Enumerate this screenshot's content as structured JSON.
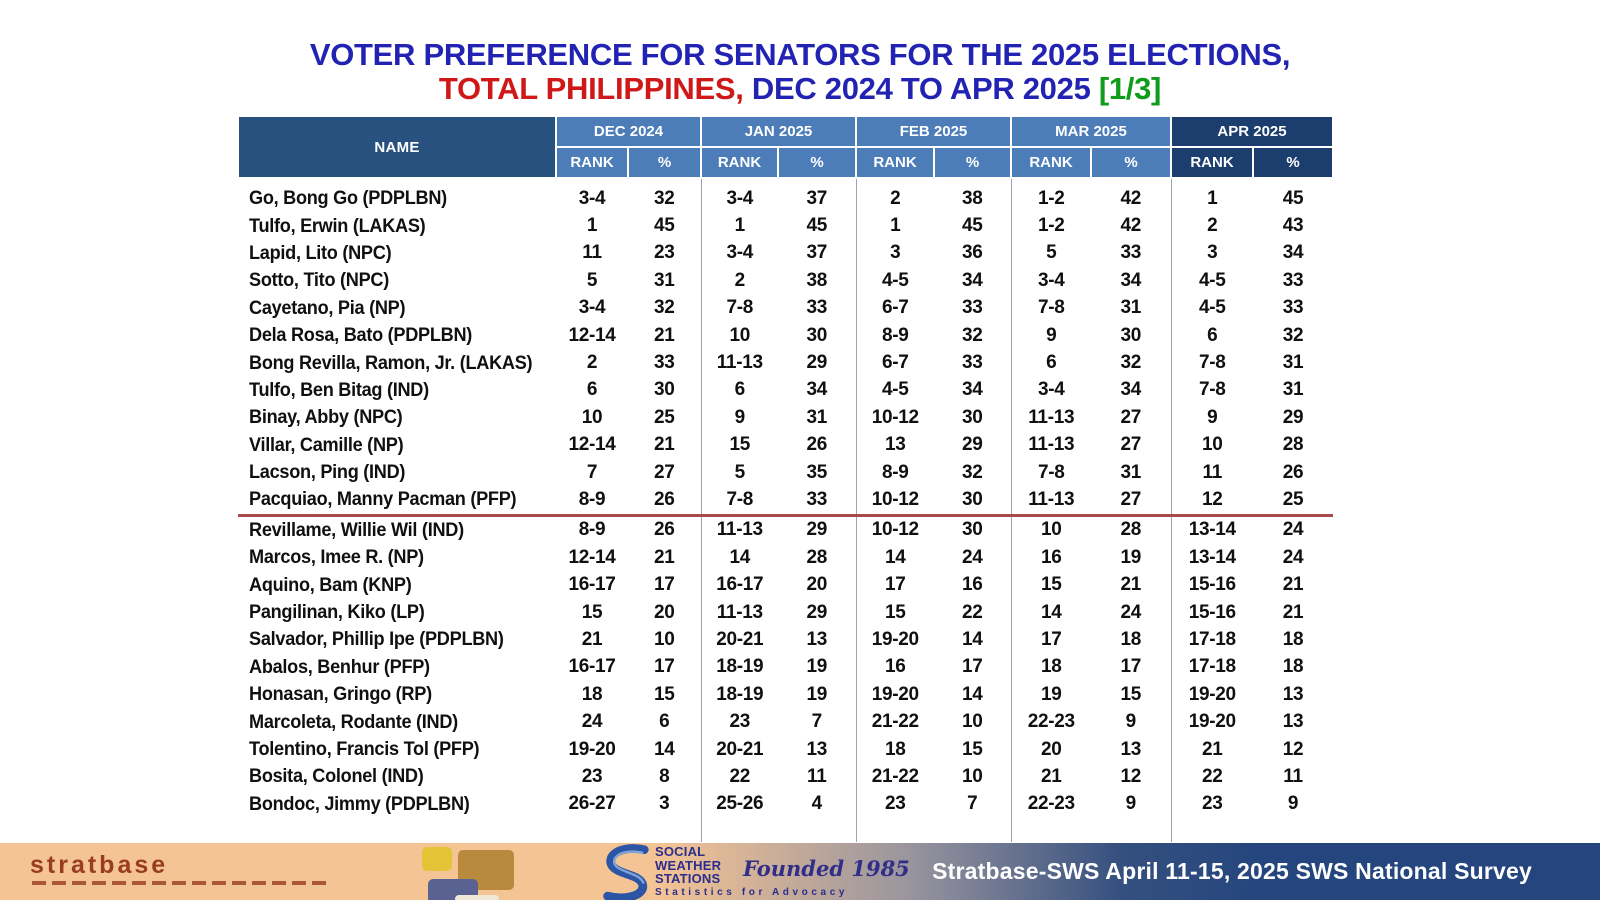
{
  "title": {
    "line1": "VOTER PREFERENCE FOR SENATORS FOR THE 2025 ELECTIONS,",
    "line2_red": "TOTAL PHILIPPINES,",
    "line2_blue": " DEC 2024 TO APR 2025 ",
    "line2_green": "[1/3]"
  },
  "table": {
    "name_header": "NAME",
    "months": [
      "DEC 2024",
      "JAN 2025",
      "FEB 2025",
      "MAR 2025",
      "APR 2025"
    ],
    "subheaders": [
      "RANK",
      "%"
    ],
    "cutoff_after_row": 12,
    "rows": [
      {
        "name": "Go, Bong Go (PDPLBN)",
        "values": [
          "3-4",
          "32",
          "3-4",
          "37",
          "2",
          "38",
          "1-2",
          "42",
          "1",
          "45"
        ]
      },
      {
        "name": "Tulfo, Erwin (LAKAS)",
        "values": [
          "1",
          "45",
          "1",
          "45",
          "1",
          "45",
          "1-2",
          "42",
          "2",
          "43"
        ]
      },
      {
        "name": "Lapid, Lito (NPC)",
        "values": [
          "11",
          "23",
          "3-4",
          "37",
          "3",
          "36",
          "5",
          "33",
          "3",
          "34"
        ]
      },
      {
        "name": "Sotto, Tito (NPC)",
        "values": [
          "5",
          "31",
          "2",
          "38",
          "4-5",
          "34",
          "3-4",
          "34",
          "4-5",
          "33"
        ]
      },
      {
        "name": "Cayetano, Pia (NP)",
        "values": [
          "3-4",
          "32",
          "7-8",
          "33",
          "6-7",
          "33",
          "7-8",
          "31",
          "4-5",
          "33"
        ]
      },
      {
        "name": "Dela Rosa, Bato (PDPLBN)",
        "values": [
          "12-14",
          "21",
          "10",
          "30",
          "8-9",
          "32",
          "9",
          "30",
          "6",
          "32"
        ]
      },
      {
        "name": "Bong Revilla, Ramon, Jr. (LAKAS)",
        "values": [
          "2",
          "33",
          "11-13",
          "29",
          "6-7",
          "33",
          "6",
          "32",
          "7-8",
          "31"
        ]
      },
      {
        "name": "Tulfo, Ben Bitag (IND)",
        "values": [
          "6",
          "30",
          "6",
          "34",
          "4-5",
          "34",
          "3-4",
          "34",
          "7-8",
          "31"
        ]
      },
      {
        "name": "Binay, Abby (NPC)",
        "values": [
          "10",
          "25",
          "9",
          "31",
          "10-12",
          "30",
          "11-13",
          "27",
          "9",
          "29"
        ]
      },
      {
        "name": "Villar, Camille (NP)",
        "values": [
          "12-14",
          "21",
          "15",
          "26",
          "13",
          "29",
          "11-13",
          "27",
          "10",
          "28"
        ]
      },
      {
        "name": "Lacson, Ping (IND)",
        "values": [
          "7",
          "27",
          "5",
          "35",
          "8-9",
          "32",
          "7-8",
          "31",
          "11",
          "26"
        ]
      },
      {
        "name": "Pacquiao, Manny Pacman (PFP)",
        "values": [
          "8-9",
          "26",
          "7-8",
          "33",
          "10-12",
          "30",
          "11-13",
          "27",
          "12",
          "25"
        ]
      },
      {
        "name": "Revillame, Willie Wil (IND)",
        "values": [
          "8-9",
          "26",
          "11-13",
          "29",
          "10-12",
          "30",
          "10",
          "28",
          "13-14",
          "24"
        ]
      },
      {
        "name": "Marcos, Imee R. (NP)",
        "values": [
          "12-14",
          "21",
          "14",
          "28",
          "14",
          "24",
          "16",
          "19",
          "13-14",
          "24"
        ]
      },
      {
        "name": "Aquino, Bam (KNP)",
        "values": [
          "16-17",
          "17",
          "16-17",
          "20",
          "17",
          "16",
          "15",
          "21",
          "15-16",
          "21"
        ]
      },
      {
        "name": "Pangilinan, Kiko (LP)",
        "values": [
          "15",
          "20",
          "11-13",
          "29",
          "15",
          "22",
          "14",
          "24",
          "15-16",
          "21"
        ]
      },
      {
        "name": "Salvador, Phillip Ipe (PDPLBN)",
        "values": [
          "21",
          "10",
          "20-21",
          "13",
          "19-20",
          "14",
          "17",
          "18",
          "17-18",
          "18"
        ]
      },
      {
        "name": "Abalos, Benhur (PFP)",
        "values": [
          "16-17",
          "17",
          "18-19",
          "19",
          "16",
          "17",
          "18",
          "17",
          "17-18",
          "18"
        ]
      },
      {
        "name": "Honasan, Gringo (RP)",
        "values": [
          "18",
          "15",
          "18-19",
          "19",
          "19-20",
          "14",
          "19",
          "15",
          "19-20",
          "13"
        ]
      },
      {
        "name": "Marcoleta, Rodante (IND)",
        "values": [
          "24",
          "6",
          "23",
          "7",
          "21-22",
          "10",
          "22-23",
          "9",
          "19-20",
          "13"
        ]
      },
      {
        "name": "Tolentino, Francis Tol (PFP)",
        "values": [
          "19-20",
          "14",
          "20-21",
          "13",
          "18",
          "15",
          "20",
          "13",
          "21",
          "12"
        ]
      },
      {
        "name": "Bosita, Colonel (IND)",
        "values": [
          "23",
          "8",
          "22",
          "11",
          "21-22",
          "10",
          "21",
          "12",
          "22",
          "11"
        ]
      },
      {
        "name": "Bondoc, Jimmy (PDPLBN)",
        "values": [
          "26-27",
          "3",
          "25-26",
          "4",
          "23",
          "7",
          "22-23",
          "9",
          "23",
          "9"
        ]
      }
    ]
  },
  "footer": {
    "stratbase_logo_text": "stratbase",
    "sws_logo": {
      "line1": "SOCIAL",
      "line2": "WEATHER",
      "line3": "STATIONS",
      "founded": "Founded 1985",
      "tagline": "Statistics for Advocacy"
    },
    "survey_label": "Stratbase-SWS April 11-15, 2025 SWS National Survey"
  },
  "colors": {
    "title_blue": "#2323B3",
    "title_red": "#D01818",
    "title_green": "#0E9C1A",
    "header_blue": "#4C7DB8",
    "header_navy": "#1C3E6E",
    "name_navy": "#28517F",
    "body_text": "#101010",
    "separator_gray": "#9AA4B5",
    "cutoff_red": "#A84A4C",
    "footer_peach": "#F5C494",
    "footer_gray": "#98949E",
    "footer_navy": "#24457E",
    "stratbase_brown": "#993C22",
    "sws_blue": "#2B2E8C"
  }
}
